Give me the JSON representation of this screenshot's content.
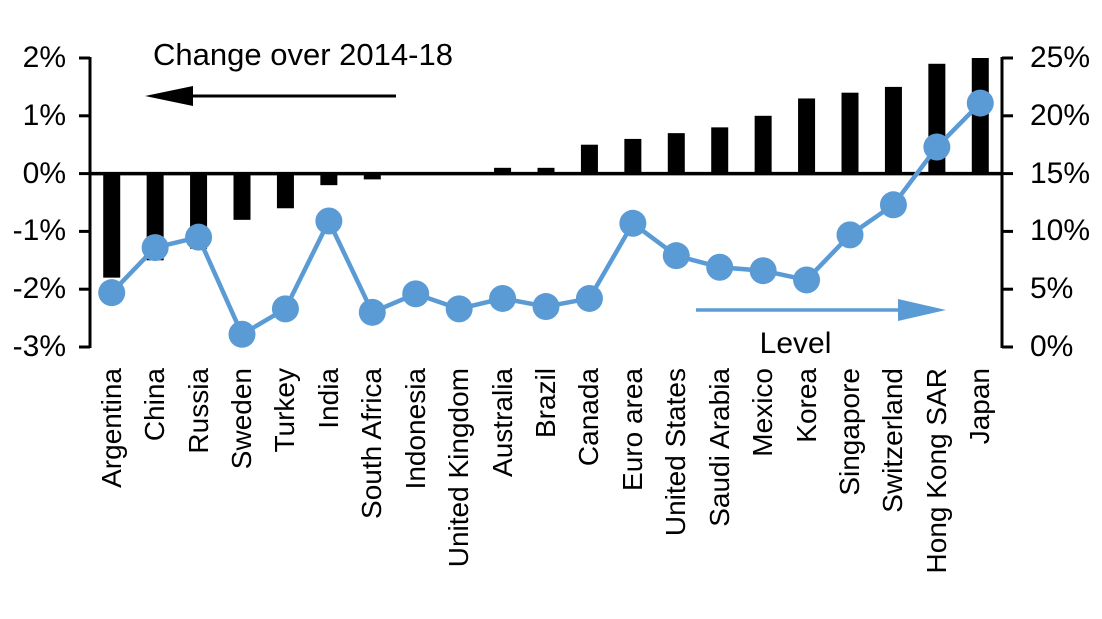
{
  "chart_data": {
    "type": "combo-bar-line",
    "categories": [
      "Argentina",
      "China",
      "Russia",
      "Sweden",
      "Turkey",
      "India",
      "South Africa",
      "Indonesia",
      "United Kingdom",
      "Australia",
      "Brazil",
      "Canada",
      "Euro area",
      "United States",
      "Saudi Arabia",
      "Mexico",
      "Korea",
      "Singapore",
      "Switzerland",
      "Hong Kong SAR",
      "Japan"
    ],
    "series": [
      {
        "name": "Change over 2014-18",
        "type": "bar",
        "axis": "left",
        "color": "#000000",
        "values": [
          -1.8,
          -1.5,
          -1.3,
          -0.8,
          -0.6,
          -0.2,
          -0.1,
          0,
          0,
          0.1,
          0.1,
          0.5,
          0.6,
          0.7,
          0.8,
          1.0,
          1.3,
          1.4,
          1.5,
          1.9,
          2.0
        ]
      },
      {
        "name": "Level",
        "type": "line",
        "axis": "right",
        "color": "#5b9bd5",
        "values": [
          4.7,
          8.6,
          9.5,
          1.1,
          3.3,
          10.9,
          3.0,
          4.6,
          3.3,
          4.2,
          3.5,
          4.2,
          10.7,
          7.9,
          6.9,
          6.6,
          5.8,
          9.7,
          12.3,
          17.3,
          21.1
        ]
      }
    ],
    "left_axis": {
      "min": -3,
      "max": 2,
      "ticks": [
        {
          "label": "2%",
          "value": 2
        },
        {
          "label": "1%",
          "value": 1
        },
        {
          "label": "0%",
          "value": 0
        },
        {
          "label": "-1%",
          "value": -1
        },
        {
          "label": "-2%",
          "value": -2
        },
        {
          "label": "-3%",
          "value": -3
        }
      ]
    },
    "right_axis": {
      "min": 0,
      "max": 25,
      "ticks": [
        {
          "label": "25%",
          "value": 25
        },
        {
          "label": "20%",
          "value": 20
        },
        {
          "label": "15%",
          "value": 15
        },
        {
          "label": "10%",
          "value": 10
        },
        {
          "label": "5%",
          "value": 5
        },
        {
          "label": "0%",
          "value": 0
        }
      ]
    },
    "annotations": {
      "bar_label": "Change over 2014-18",
      "bar_arrow_direction": "left",
      "bar_arrow_color": "#000000",
      "level_label": "Level",
      "level_arrow_direction": "right",
      "level_arrow_color": "#5b9bd5"
    },
    "layout_hints": {
      "grid": false,
      "legend": "none",
      "zero_line": true,
      "x_labels_rotation_deg": 90
    }
  }
}
